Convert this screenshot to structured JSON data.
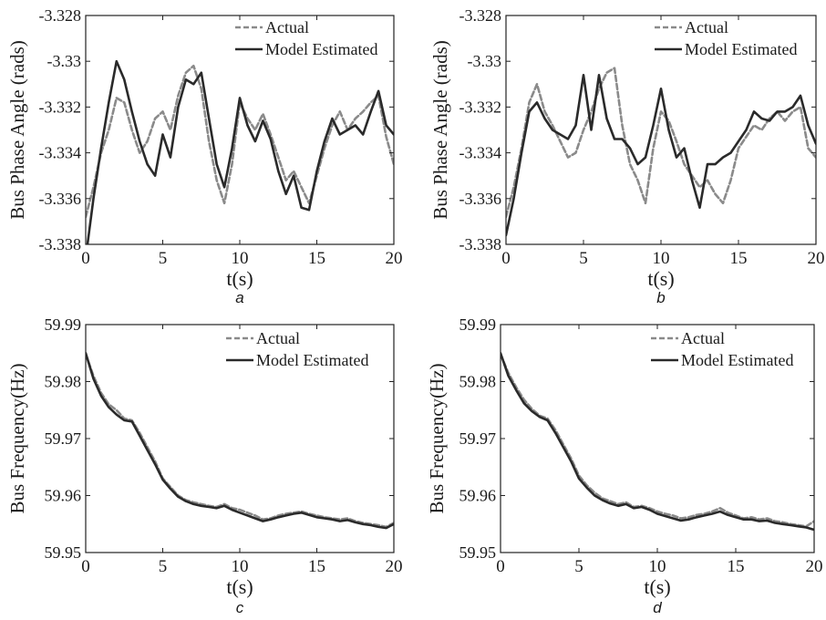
{
  "chart_data": [
    {
      "panel": "a",
      "type": "line",
      "caption": "a",
      "xlabel": "t(s)",
      "ylabel": "Bus Phase Angle (rads)",
      "xlim": [
        0,
        20
      ],
      "ylim": [
        -3.338,
        -3.328
      ],
      "xticks": [
        0,
        5,
        10,
        15,
        20
      ],
      "yticks": [
        -3.328,
        -3.33,
        -3.332,
        -3.334,
        -3.336,
        -3.338
      ],
      "grid": false,
      "legend": "top-right",
      "series": [
        {
          "name": "Actual",
          "style": "dashed",
          "color": "#8a8a8a",
          "x": [
            0,
            0.5,
            1,
            1.5,
            2,
            2.5,
            3,
            3.5,
            4,
            4.5,
            5,
            5.5,
            6,
            6.5,
            7,
            7.5,
            8,
            8.5,
            9,
            9.5,
            10,
            10.5,
            11,
            11.5,
            12,
            12.5,
            13,
            13.5,
            14,
            14.5,
            15,
            15.5,
            16,
            16.5,
            17,
            17.5,
            18,
            18.5,
            19,
            19.5,
            20
          ],
          "y": [
            -3.3368,
            -3.3355,
            -3.334,
            -3.333,
            -3.3316,
            -3.3318,
            -3.333,
            -3.334,
            -3.3335,
            -3.3325,
            -3.3322,
            -3.333,
            -3.3315,
            -3.3305,
            -3.3302,
            -3.3312,
            -3.3335,
            -3.3352,
            -3.3362,
            -3.3345,
            -3.3318,
            -3.3325,
            -3.333,
            -3.3323,
            -3.3332,
            -3.3342,
            -3.3352,
            -3.3348,
            -3.3355,
            -3.3362,
            -3.335,
            -3.3338,
            -3.3328,
            -3.3322,
            -3.333,
            -3.3325,
            -3.3322,
            -3.3318,
            -3.3315,
            -3.3333,
            -3.3345
          ]
        },
        {
          "name": "Model Estimated",
          "style": "solid",
          "color": "#2a2a2a",
          "x": [
            0,
            0.5,
            1,
            1.5,
            2,
            2.5,
            3,
            3.5,
            4,
            4.5,
            5,
            5.5,
            6,
            6.5,
            7,
            7.5,
            8,
            8.5,
            9,
            9.5,
            10,
            10.5,
            11,
            11.5,
            12,
            12.5,
            13,
            13.5,
            14,
            14.5,
            15,
            15.5,
            16,
            16.5,
            17,
            17.5,
            18,
            18.5,
            19,
            19.5,
            20
          ],
          "y": [
            -3.3386,
            -3.336,
            -3.3338,
            -3.3318,
            -3.33,
            -3.3308,
            -3.3322,
            -3.3335,
            -3.3345,
            -3.335,
            -3.3332,
            -3.3342,
            -3.332,
            -3.3308,
            -3.331,
            -3.3305,
            -3.3325,
            -3.3345,
            -3.3355,
            -3.3338,
            -3.3316,
            -3.3328,
            -3.3335,
            -3.3326,
            -3.3334,
            -3.3348,
            -3.3358,
            -3.335,
            -3.3364,
            -3.3365,
            -3.3348,
            -3.3335,
            -3.3325,
            -3.3332,
            -3.333,
            -3.3328,
            -3.3332,
            -3.3322,
            -3.3313,
            -3.3328,
            -3.3332
          ]
        }
      ]
    },
    {
      "panel": "b",
      "type": "line",
      "caption": "b",
      "xlabel": "t(s)",
      "ylabel": "Bus Phase Angle (rads)",
      "xlim": [
        0,
        20
      ],
      "ylim": [
        -3.338,
        -3.328
      ],
      "xticks": [
        0,
        5,
        10,
        15,
        20
      ],
      "yticks": [
        -3.328,
        -3.33,
        -3.332,
        -3.334,
        -3.336,
        -3.338
      ],
      "grid": false,
      "legend": "top-right",
      "series": [
        {
          "name": "Actual",
          "style": "dashed",
          "color": "#8a8a8a",
          "x": [
            0,
            0.5,
            1,
            1.5,
            2,
            2.5,
            3,
            3.5,
            4,
            4.5,
            5,
            5.5,
            6,
            6.5,
            7,
            7.5,
            8,
            8.5,
            9,
            9.5,
            10,
            10.5,
            11,
            11.5,
            12,
            12.5,
            13,
            13.5,
            14,
            14.5,
            15,
            15.5,
            16,
            16.5,
            17,
            17.5,
            18,
            18.5,
            19,
            19.5,
            20
          ],
          "y": [
            -3.3368,
            -3.3355,
            -3.3338,
            -3.3318,
            -3.331,
            -3.3322,
            -3.3328,
            -3.3335,
            -3.3342,
            -3.334,
            -3.333,
            -3.3322,
            -3.3312,
            -3.3305,
            -3.3303,
            -3.3328,
            -3.3345,
            -3.3352,
            -3.3362,
            -3.3338,
            -3.3322,
            -3.3326,
            -3.3335,
            -3.3345,
            -3.335,
            -3.3355,
            -3.3352,
            -3.3358,
            -3.3362,
            -3.3352,
            -3.3338,
            -3.3333,
            -3.3328,
            -3.333,
            -3.3325,
            -3.3322,
            -3.3326,
            -3.3322,
            -3.332,
            -3.3338,
            -3.3342
          ]
        },
        {
          "name": "Model Estimated",
          "style": "solid",
          "color": "#2a2a2a",
          "x": [
            0,
            0.5,
            1,
            1.5,
            2,
            2.5,
            3,
            3.5,
            4,
            4.5,
            5,
            5.5,
            6,
            6.5,
            7,
            7.5,
            8,
            8.5,
            9,
            9.5,
            10,
            10.5,
            11,
            11.5,
            12,
            12.5,
            13,
            13.5,
            14,
            14.5,
            15,
            15.5,
            16,
            16.5,
            17,
            17.5,
            18,
            18.5,
            19,
            19.5,
            20
          ],
          "y": [
            -3.3376,
            -3.336,
            -3.334,
            -3.3322,
            -3.3318,
            -3.3325,
            -3.333,
            -3.3332,
            -3.3334,
            -3.3328,
            -3.3306,
            -3.333,
            -3.3306,
            -3.3325,
            -3.3334,
            -3.3334,
            -3.3338,
            -3.3345,
            -3.3342,
            -3.3328,
            -3.3312,
            -3.333,
            -3.3342,
            -3.3338,
            -3.3352,
            -3.3364,
            -3.3345,
            -3.3345,
            -3.3342,
            -3.334,
            -3.3335,
            -3.333,
            -3.3322,
            -3.3325,
            -3.3326,
            -3.3322,
            -3.3322,
            -3.332,
            -3.3315,
            -3.3328,
            -3.3336
          ]
        }
      ]
    },
    {
      "panel": "c",
      "type": "line",
      "caption": "c",
      "xlabel": "t(s)",
      "ylabel": "Bus Frequency(Hz)",
      "xlim": [
        0,
        20
      ],
      "ylim": [
        59.95,
        59.99
      ],
      "xticks": [
        0,
        5,
        10,
        15,
        20
      ],
      "yticks": [
        59.95,
        59.96,
        59.97,
        59.98,
        59.99
      ],
      "grid": false,
      "legend": "top-right",
      "series": [
        {
          "name": "Actual",
          "style": "dashed",
          "color": "#8a8a8a",
          "x": [
            0,
            0.5,
            1,
            1.5,
            2,
            2.5,
            3,
            3.5,
            4,
            4.5,
            5,
            5.5,
            6,
            6.5,
            7,
            7.5,
            8,
            8.5,
            9,
            9.5,
            10,
            10.5,
            11,
            11.5,
            12,
            12.5,
            13,
            13.5,
            14,
            14.5,
            15,
            15.5,
            16,
            16.5,
            17,
            17.5,
            18,
            18.5,
            19,
            19.5,
            20
          ],
          "y": [
            59.9848,
            59.981,
            59.978,
            59.976,
            59.975,
            59.9735,
            59.9732,
            59.971,
            59.9685,
            59.966,
            59.963,
            59.9615,
            59.96,
            59.9592,
            59.9588,
            59.9585,
            59.9582,
            59.958,
            59.9585,
            59.9578,
            59.9575,
            59.957,
            59.9565,
            59.9558,
            59.956,
            59.9565,
            59.9568,
            59.957,
            59.9572,
            59.9568,
            59.9565,
            59.9562,
            59.956,
            59.9558,
            59.956,
            59.9555,
            59.9552,
            59.955,
            59.9548,
            59.9545,
            59.9552
          ]
        },
        {
          "name": "Model Estimated",
          "style": "solid",
          "color": "#2a2a2a",
          "x": [
            0,
            0.5,
            1,
            1.5,
            2,
            2.5,
            3,
            3.5,
            4,
            4.5,
            5,
            5.5,
            6,
            6.5,
            7,
            7.5,
            8,
            8.5,
            9,
            9.5,
            10,
            10.5,
            11,
            11.5,
            12,
            12.5,
            13,
            13.5,
            14,
            14.5,
            15,
            15.5,
            16,
            16.5,
            17,
            17.5,
            18,
            18.5,
            19,
            19.5,
            20
          ],
          "y": [
            59.985,
            59.9805,
            59.9775,
            59.9755,
            59.9742,
            59.9732,
            59.973,
            59.9705,
            59.968,
            59.9655,
            59.9628,
            59.9612,
            59.9598,
            59.959,
            59.9585,
            59.9582,
            59.958,
            59.9578,
            59.9582,
            59.9575,
            59.957,
            59.9565,
            59.956,
            59.9555,
            59.9558,
            59.9562,
            59.9565,
            59.9568,
            59.957,
            59.9566,
            59.9562,
            59.956,
            59.9558,
            59.9555,
            59.9557,
            59.9553,
            59.955,
            59.9548,
            59.9545,
            59.9543,
            59.955
          ]
        }
      ]
    },
    {
      "panel": "d",
      "type": "line",
      "caption": "d",
      "xlabel": "t(s)",
      "ylabel": "Bus Frequency(Hz)",
      "xlim": [
        0,
        20
      ],
      "ylim": [
        59.95,
        59.99
      ],
      "xticks": [
        0,
        5,
        10,
        15,
        20
      ],
      "yticks": [
        59.95,
        59.96,
        59.97,
        59.98,
        59.99
      ],
      "grid": false,
      "legend": "top-right",
      "series": [
        {
          "name": "Actual",
          "style": "dashed",
          "color": "#8a8a8a",
          "x": [
            0,
            0.5,
            1,
            1.5,
            2,
            2.5,
            3,
            3.5,
            4,
            4.5,
            5,
            5.5,
            6,
            6.5,
            7,
            7.5,
            8,
            8.5,
            9,
            9.5,
            10,
            10.5,
            11,
            11.5,
            12,
            12.5,
            13,
            13.5,
            14,
            14.5,
            15,
            15.5,
            16,
            16.5,
            17,
            17.5,
            18,
            18.5,
            19,
            19.5,
            20
          ],
          "y": [
            59.9848,
            59.9815,
            59.979,
            59.9768,
            59.9752,
            59.974,
            59.9735,
            59.9715,
            59.969,
            59.9665,
            59.9635,
            59.9618,
            59.9605,
            59.9595,
            59.959,
            59.9585,
            59.9588,
            59.958,
            59.9582,
            59.9578,
            59.9572,
            59.9568,
            59.9565,
            59.956,
            59.9562,
            59.9566,
            59.9568,
            59.9572,
            59.9578,
            59.957,
            59.9565,
            59.956,
            59.9562,
            59.9558,
            59.956,
            59.9555,
            59.9553,
            59.955,
            59.9548,
            59.9546,
            59.9555
          ]
        },
        {
          "name": "Model Estimated",
          "style": "solid",
          "color": "#2a2a2a",
          "x": [
            0,
            0.5,
            1,
            1.5,
            2,
            2.5,
            3,
            3.5,
            4,
            4.5,
            5,
            5.5,
            6,
            6.5,
            7,
            7.5,
            8,
            8.5,
            9,
            9.5,
            10,
            10.5,
            11,
            11.5,
            12,
            12.5,
            13,
            13.5,
            14,
            14.5,
            15,
            15.5,
            16,
            16.5,
            17,
            17.5,
            18,
            18.5,
            19,
            19.5,
            20
          ],
          "y": [
            59.985,
            59.981,
            59.9785,
            59.9762,
            59.9748,
            59.9738,
            59.9732,
            59.971,
            59.9685,
            59.966,
            59.963,
            59.9614,
            59.96,
            59.9592,
            59.9586,
            59.9582,
            59.9585,
            59.9578,
            59.958,
            59.9575,
            59.9568,
            59.9564,
            59.956,
            59.9556,
            59.9558,
            59.9562,
            59.9565,
            59.9568,
            59.9572,
            59.9566,
            59.9562,
            59.9558,
            59.9558,
            59.9555,
            59.9556,
            59.9552,
            59.955,
            59.9548,
            59.9546,
            59.9544,
            59.954
          ]
        }
      ]
    }
  ]
}
